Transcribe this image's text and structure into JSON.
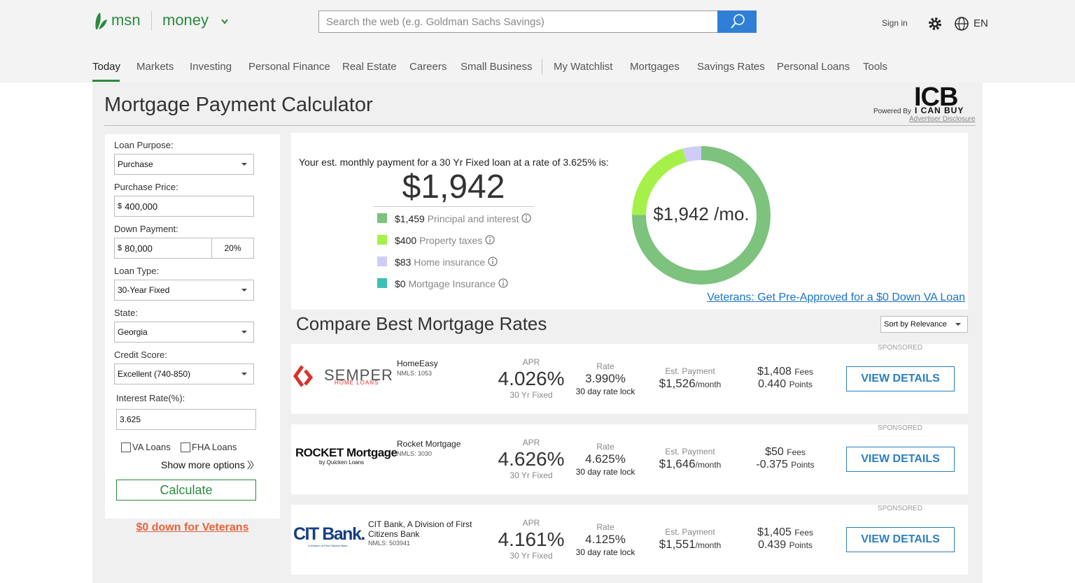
{
  "header": {
    "logo": "msn",
    "section": "money",
    "search_placeholder": "Search the web (e.g. Goldman Sachs Savings)",
    "sign_in": "Sign in",
    "language": "EN"
  },
  "nav": {
    "items": [
      "Today",
      "Markets",
      "Investing",
      "Personal Finance",
      "Real Estate",
      "Careers",
      "Small Business",
      "My Watchlist",
      "Mortgages",
      "Savings Rates",
      "Personal Loans",
      "Tools"
    ]
  },
  "calculator": {
    "title": "Mortgage Payment Calculator",
    "powered_by": "Powered By",
    "brand": "ICB",
    "brand_sub": "I CAN BUY",
    "disclosure": "Advertiser Disclosure"
  },
  "form": {
    "fields": [
      {
        "label": "Loan Purpose:",
        "value": "Purchase"
      },
      {
        "label": "Purchase Price:",
        "prefix": "$",
        "value": "400,000"
      },
      {
        "label": "Down Payment:",
        "prefix": "$",
        "value": "80,000",
        "percent": "20%"
      },
      {
        "label": "Loan Type:",
        "value": "30-Year Fixed"
      },
      {
        "label": "State:",
        "value": "Georgia"
      },
      {
        "label": "Credit Score:",
        "value": "Excellent (740-850)"
      }
    ],
    "interest_label": "Interest Rate(%):",
    "interest_value": "3.625",
    "checkboxes": [
      "VA Loans",
      "FHA Loans"
    ],
    "show_more": "Show more options",
    "calculate": "Calculate",
    "veterans_link": "$0 down for Veterans"
  },
  "summary": {
    "sentence": "Your est. monthly payment for a 30 Yr Fixed loan at a rate of 3.625% is:",
    "amount": "$1,942",
    "breakdown": [
      {
        "value": 1459,
        "label": "$1,459",
        "name": "Principal and interest",
        "color": "#7dc27d"
      },
      {
        "value": 400,
        "label": "$400",
        "name": "Property taxes",
        "color": "#a6f04a"
      },
      {
        "value": 83,
        "label": "$83",
        "name": "Home insurance",
        "color": "#cfcdf7"
      },
      {
        "value": 0,
        "label": "$0",
        "name": "Mortgage Insurance",
        "color": "#3dbfb4"
      }
    ],
    "donut_center": "$1,942 /mo.",
    "va_link": "Veterans: Get Pre-Approved for a $0 Down VA Loan"
  },
  "compare": {
    "title": "Compare Best Mortgage Rates",
    "sort": "Sort by Relevance",
    "offers": [
      {
        "sponsored": "SPONSORED",
        "logo": "SEMPER",
        "logo_sub": "HOME LOANS",
        "lender": "HomeEasy",
        "nmls": "NMLS: 1053",
        "apr_label": "APR",
        "apr": "4.026%",
        "apr_sub": "30 Yr Fixed",
        "rate_label": "Rate",
        "rate": "3.990%",
        "rate_sub": "30 day rate lock",
        "payment_label": "Est. Payment",
        "payment": "$1,526",
        "payment_unit": "/month",
        "fees": "$1,408",
        "fees_label": "Fees",
        "points": "0.440",
        "points_label": "Points",
        "button": "VIEW DETAILS"
      },
      {
        "sponsored": "SPONSORED",
        "logo": "ROCKET Mortgage",
        "logo_sub": "by Quicken Loans",
        "lender": "Rocket Mortgage",
        "nmls": "NMLS: 3030",
        "apr_label": "APR",
        "apr": "4.626%",
        "apr_sub": "30 Yr Fixed",
        "rate_label": "Rate",
        "rate": "4.625%",
        "rate_sub": "30 day rate lock",
        "payment_label": "Est. Payment",
        "payment": "$1,646",
        "payment_unit": "/month",
        "fees": "$50",
        "fees_label": "Fees",
        "points": "-0.375",
        "points_label": "Points",
        "button": "VIEW DETAILS"
      },
      {
        "sponsored": "SPONSORED",
        "logo": "CIT Bank.",
        "logo_sub": "A Division of First Citizens Bank",
        "lender": "CIT Bank, A Division of First Citizens Bank",
        "nmls": "NMLS: 503941",
        "apr_label": "APR",
        "apr": "4.161%",
        "apr_sub": "30 Yr Fixed",
        "rate_label": "Rate",
        "rate": "4.125%",
        "rate_sub": "30 day rate lock",
        "payment_label": "Est. Payment",
        "payment": "$1,551",
        "payment_unit": "/month",
        "fees": "$1,405",
        "fees_label": "Fees",
        "points": "0.439",
        "points_label": "Points",
        "button": "VIEW DETAILS"
      }
    ]
  }
}
